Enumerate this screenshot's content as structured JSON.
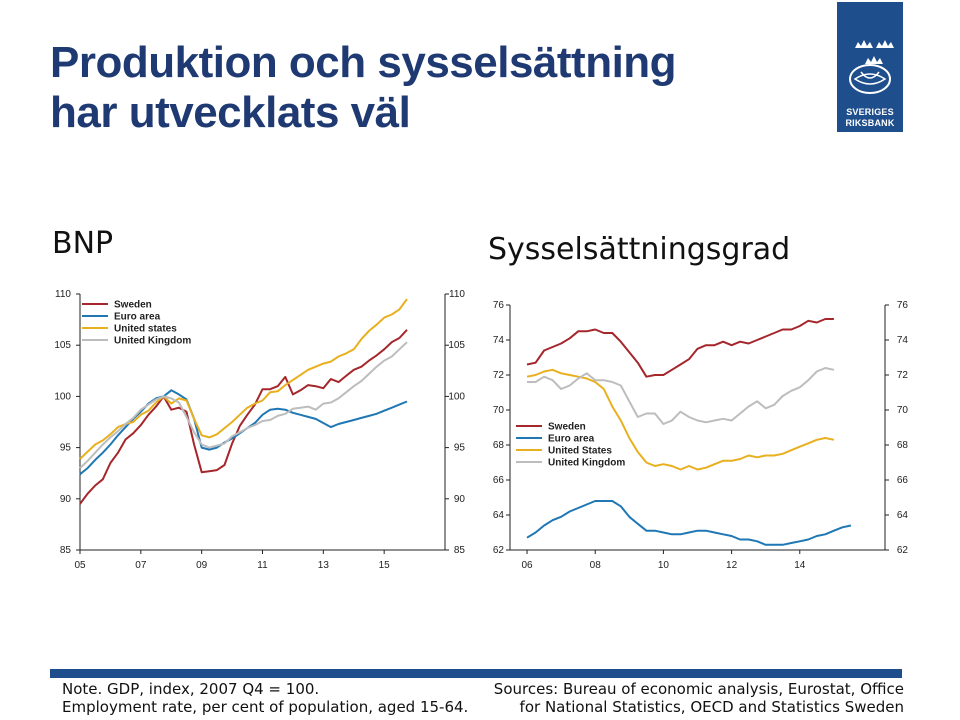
{
  "title": {
    "line1": "Produktion och sysselsättning",
    "line2": "har utvecklats väl"
  },
  "logo": {
    "line1": "SVERIGES",
    "line2": "RIKSBANK"
  },
  "colors": {
    "brand": "#1f4e8c",
    "title": "#1f3a73",
    "sweden": "#a5262b",
    "euro": "#1f77b4",
    "us": "#e8b01e",
    "uk": "#bdbdbd"
  },
  "footer": {
    "note_line1": "Note. GDP, index, 2007 Q4 = 100.",
    "note_line2": "Employment rate, per cent of population, aged 15-64.",
    "sources_line1": "Sources: Bureau of economic analysis, Eurostat, Office",
    "sources_line2": "for National Statistics, OECD and Statistics Sweden"
  },
  "chart_data": [
    {
      "type": "line",
      "title": "BNP",
      "ylim": [
        85,
        110
      ],
      "xlim": [
        2005,
        2017
      ],
      "yticks": [
        "85",
        "90",
        "95",
        "100",
        "105",
        "110"
      ],
      "xticks": [
        "05",
        "07",
        "09",
        "11",
        "13",
        "15"
      ],
      "legend": {
        "placement": "top-left"
      },
      "series": [
        {
          "name": "Sweden",
          "color": "#a5262b",
          "x_start": 2005,
          "x_step": 0.25,
          "values": [
            89.5,
            90.5,
            91.3,
            91.9,
            93.5,
            94.5,
            95.8,
            96.4,
            97.2,
            98.2,
            99.0,
            100.0,
            98.7,
            98.9,
            98.5,
            95.3,
            92.6,
            92.7,
            92.8,
            93.3,
            95.4,
            97.1,
            98.2,
            99.2,
            100.7,
            100.7,
            101.0,
            101.9,
            100.2,
            100.6,
            101.1,
            101.0,
            100.8,
            101.7,
            101.4,
            102.0,
            102.6,
            102.9,
            103.5,
            104.0,
            104.6,
            105.3,
            105.7,
            106.5
          ]
        },
        {
          "name": "Euro area",
          "color": "#1f77b4",
          "x_start": 2005,
          "x_step": 0.25,
          "values": [
            92.4,
            93.0,
            93.8,
            94.5,
            95.3,
            96.2,
            97.0,
            97.8,
            98.5,
            99.3,
            99.8,
            100.0,
            100.6,
            100.2,
            99.7,
            97.8,
            95.0,
            94.8,
            95.0,
            95.5,
            95.9,
            96.4,
            96.9,
            97.4,
            98.2,
            98.7,
            98.8,
            98.7,
            98.4,
            98.2,
            98.0,
            97.8,
            97.4,
            97.0,
            97.3,
            97.5,
            97.7,
            97.9,
            98.1,
            98.3,
            98.6,
            98.9,
            99.2,
            99.5
          ]
        },
        {
          "name": "United states",
          "color": "#e8b01e",
          "x_start": 2005,
          "x_step": 0.25,
          "values": [
            93.9,
            94.6,
            95.3,
            95.7,
            96.3,
            97.0,
            97.3,
            97.5,
            98.2,
            98.6,
            99.4,
            100.0,
            99.3,
            99.8,
            99.6,
            97.8,
            96.2,
            96.0,
            96.3,
            96.9,
            97.5,
            98.2,
            98.9,
            99.3,
            99.6,
            100.4,
            100.5,
            101.1,
            101.6,
            102.1,
            102.6,
            102.9,
            103.2,
            103.4,
            103.9,
            104.2,
            104.6,
            105.6,
            106.4,
            107.0,
            107.7,
            108.0,
            108.5,
            109.5
          ]
        },
        {
          "name": "United Kingdom",
          "color": "#bdbdbd",
          "x_start": 2005,
          "x_step": 0.25,
          "values": [
            93.0,
            93.7,
            94.5,
            95.3,
            96.0,
            96.6,
            97.3,
            97.9,
            98.7,
            99.2,
            99.7,
            100.0,
            99.8,
            99.4,
            98.0,
            96.5,
            95.3,
            95.0,
            95.2,
            95.4,
            96.1,
            96.5,
            96.9,
            97.2,
            97.6,
            97.7,
            98.1,
            98.3,
            98.8,
            98.9,
            99.0,
            98.7,
            99.3,
            99.4,
            99.8,
            100.4,
            101.0,
            101.5,
            102.2,
            102.9,
            103.5,
            103.9,
            104.6,
            105.3
          ]
        }
      ]
    },
    {
      "type": "line",
      "title": "Sysselsättningsgrad",
      "ylim": [
        62,
        76
      ],
      "xlim": [
        2005.5,
        2016.5
      ],
      "yticks": [
        "62",
        "64",
        "66",
        "68",
        "70",
        "72",
        "74",
        "76"
      ],
      "xticks": [
        "06",
        "08",
        "10",
        "12",
        "14"
      ],
      "legend": {
        "placement": "center-left"
      },
      "series": [
        {
          "name": "Sweden",
          "color": "#a5262b",
          "x_start": 2006,
          "x_step": 0.25,
          "values": [
            72.6,
            72.7,
            73.4,
            73.6,
            73.8,
            74.1,
            74.5,
            74.5,
            74.6,
            74.4,
            74.4,
            73.9,
            73.3,
            72.7,
            71.9,
            72.0,
            72.0,
            72.3,
            72.6,
            72.9,
            73.5,
            73.7,
            73.7,
            73.9,
            73.7,
            73.9,
            73.8,
            74.0,
            74.2,
            74.4,
            74.6,
            74.6,
            74.8,
            75.1,
            75.0,
            75.2,
            75.2
          ]
        },
        {
          "name": "Euro area",
          "color": "#1f77b4",
          "x_start": 2006,
          "x_step": 0.25,
          "values": null
        },
        {
          "name": "United States",
          "color": "#e8b01e",
          "x_start": 2006,
          "x_step": 0.25,
          "values": [
            71.9,
            72.0,
            72.2,
            72.3,
            72.1,
            72.0,
            71.9,
            71.8,
            71.6,
            71.2,
            70.2,
            69.4,
            68.4,
            67.6,
            67.0,
            66.8,
            66.9,
            66.8,
            66.6,
            66.8,
            66.6,
            66.7,
            66.9,
            67.1,
            67.1,
            67.2,
            67.4,
            67.3,
            67.4,
            67.4,
            67.5,
            67.7,
            67.9,
            68.1,
            68.3,
            68.4,
            68.3
          ]
        },
        {
          "name": "United Kingdom",
          "color": "#bdbdbd",
          "x_start": 2006,
          "x_step": 0.25,
          "values": [
            71.6,
            71.6,
            71.9,
            71.7,
            71.2,
            71.4,
            71.8,
            72.1,
            71.7,
            71.7,
            71.6,
            71.4,
            70.5,
            69.6,
            69.8,
            69.8,
            69.2,
            69.4,
            69.9,
            69.6,
            69.4,
            69.3,
            69.4,
            69.5,
            69.4,
            69.8,
            70.2,
            70.5,
            70.1,
            70.3,
            70.8,
            71.1,
            71.3,
            71.7,
            72.2,
            72.4,
            72.3
          ]
        }
      ]
    }
  ],
  "euro_emp_values": [
    62.7,
    63.0,
    63.4,
    63.7,
    63.9,
    64.2,
    64.4,
    64.6,
    64.8,
    64.8,
    64.8,
    64.5,
    63.9,
    63.5,
    63.1,
    63.1,
    63.0,
    62.9,
    62.9,
    63.0,
    63.1,
    63.1,
    63.0,
    62.9,
    62.8,
    62.6,
    62.6,
    62.5,
    62.3,
    62.3,
    62.3,
    62.4,
    62.5,
    62.6,
    62.8,
    62.9,
    63.1,
    63.3,
    63.4
  ]
}
